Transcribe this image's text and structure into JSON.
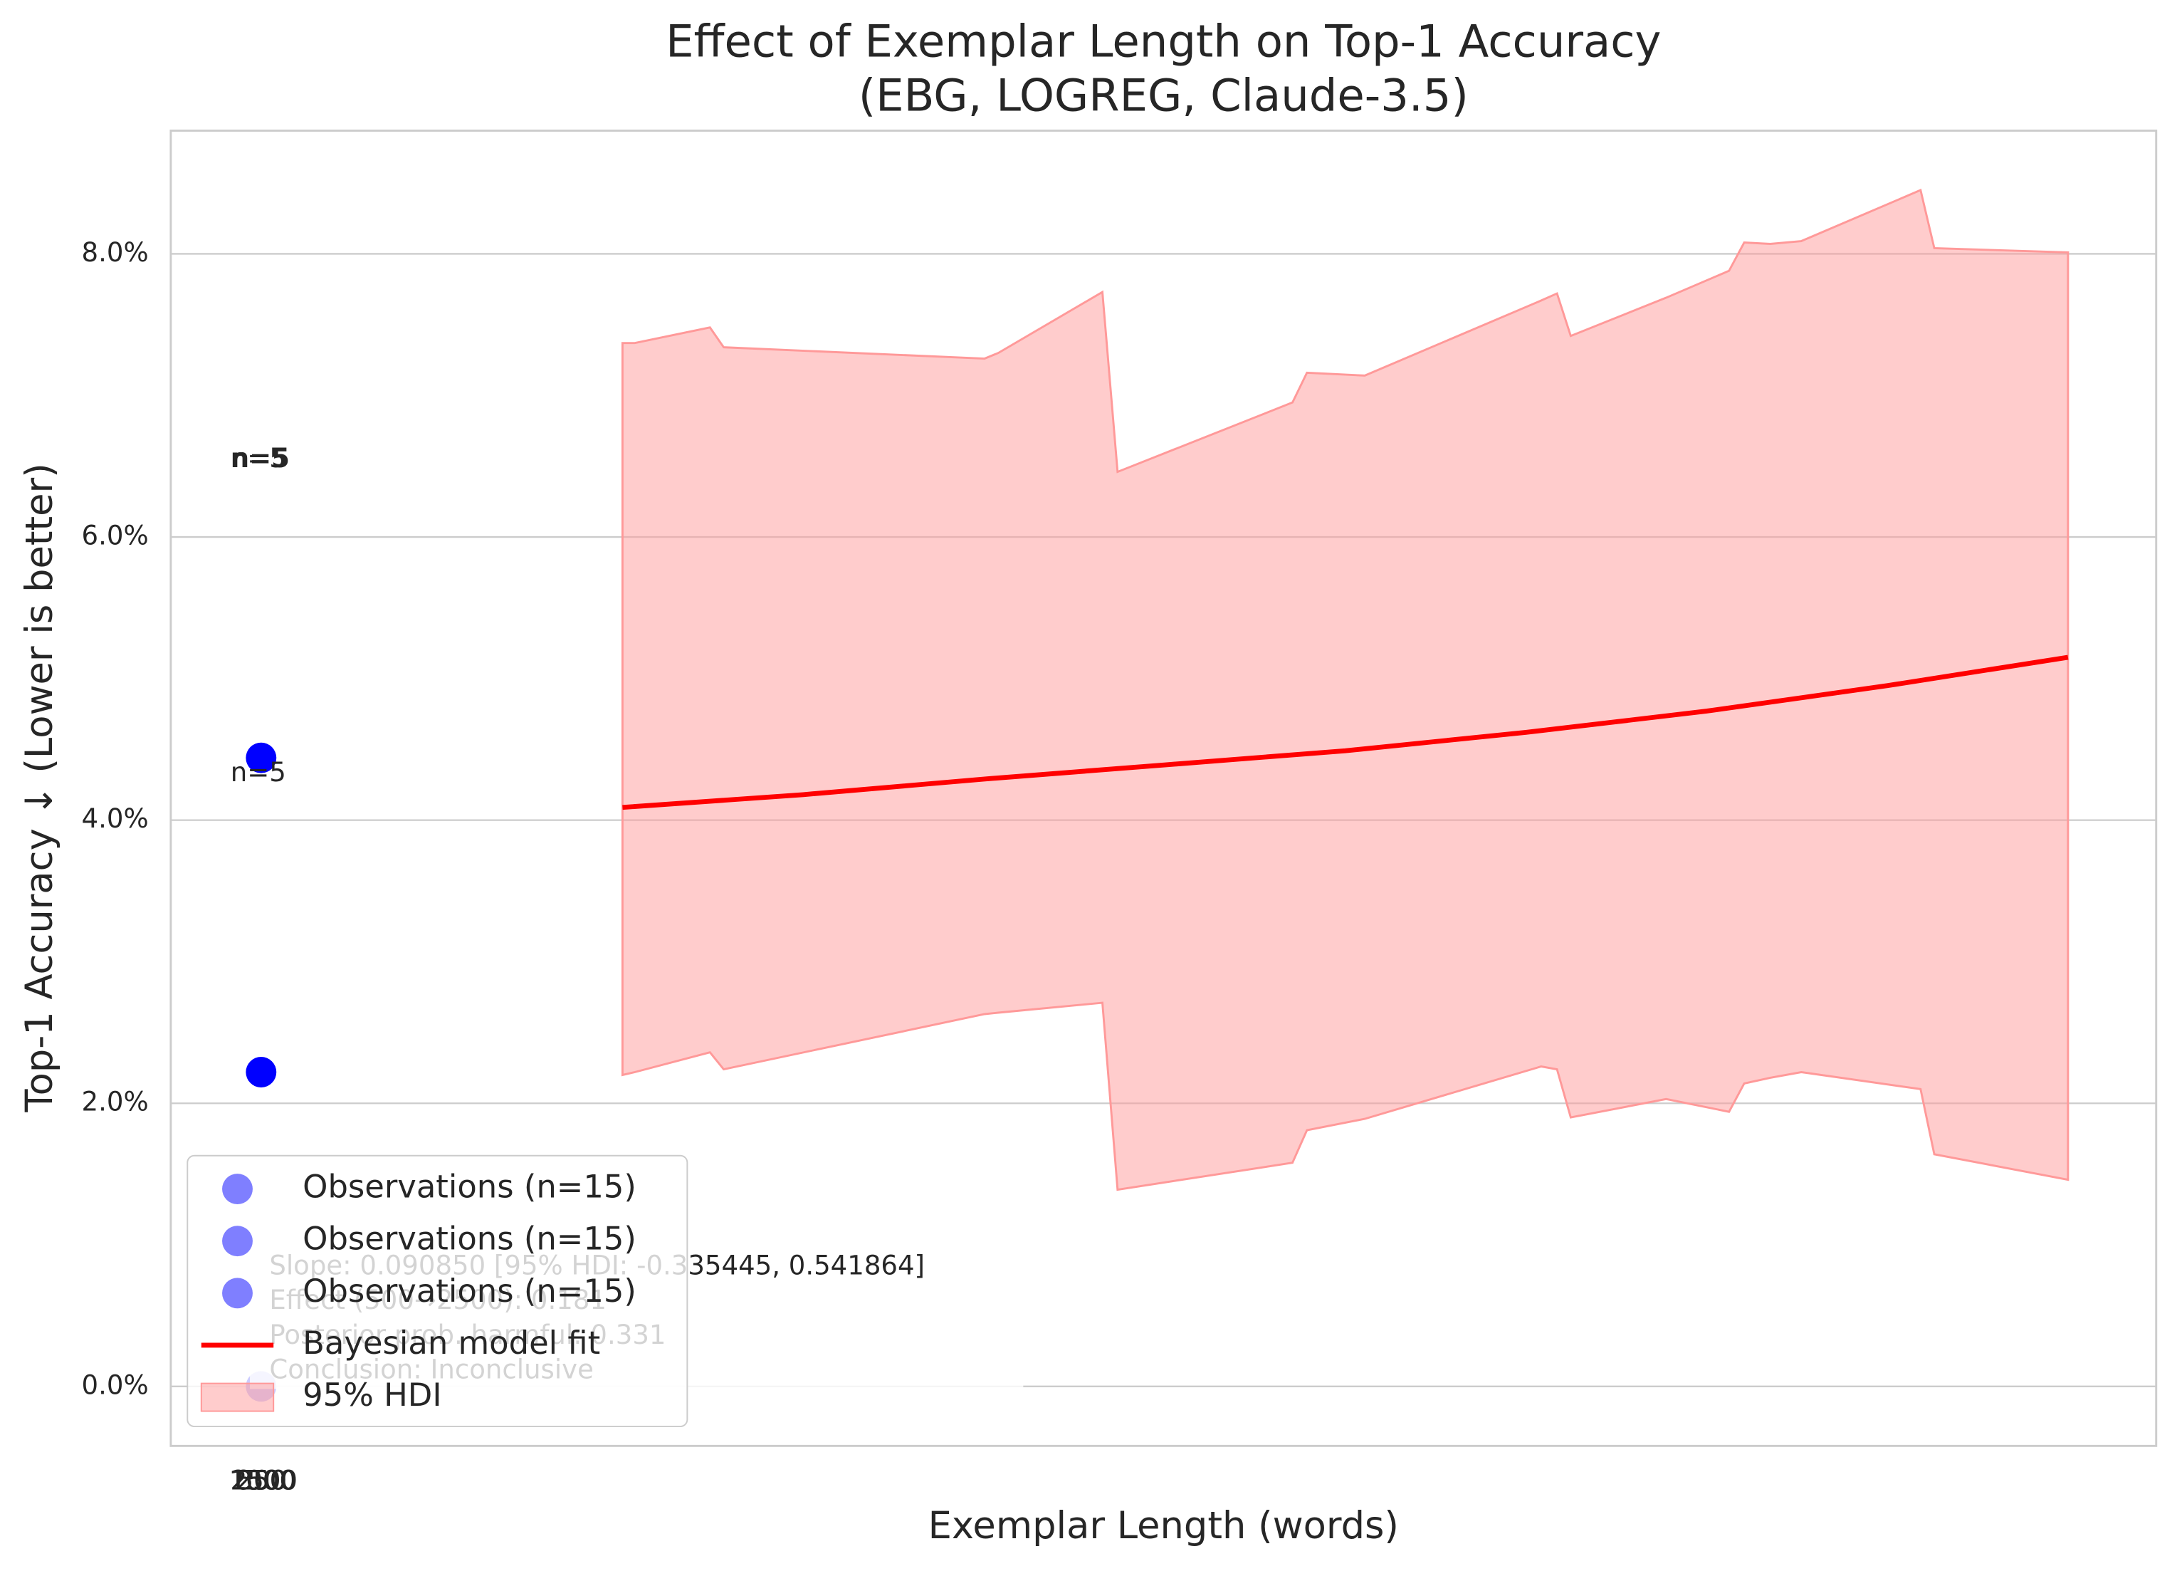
{
  "chart_data": {
    "type": "scatter",
    "title": [
      "Effect of Exemplar Length on Top-1 Accuracy",
      "(EBG, LOGREG, Claude-3.5)"
    ],
    "xlabel": "Exemplar Length (words)",
    "ylabel": "Top-1 Accuracy ↓ (Lower is better)",
    "xlim": [
      -125,
      2622
    ],
    "ylim": [
      -0.42,
      8.87
    ],
    "xticks": [
      {
        "value": 0,
        "label": "250"
      },
      {
        "value": 1,
        "label": "500"
      },
      {
        "value": 2,
        "label": "1000"
      },
      {
        "value": 3,
        "label": "1500"
      },
      {
        "value": 4,
        "label": "2500"
      }
    ],
    "yticks": [
      {
        "value": 0,
        "label": "0.0%"
      },
      {
        "value": 2,
        "label": "2.0%"
      },
      {
        "value": 4,
        "label": "4.0%"
      },
      {
        "value": 6,
        "label": "6.0%"
      },
      {
        "value": 8,
        "label": "8.0%"
      }
    ],
    "grid": true,
    "legend": "lower left",
    "series": [
      {
        "name": "Observations (n=15)",
        "color": "#0000ff",
        "x": [
          0
        ],
        "values": [
          4.44
        ]
      },
      {
        "name": "Observations (n=15)",
        "color": "#0000ff",
        "x": [
          0
        ],
        "values": [
          2.22
        ]
      },
      {
        "name": "Observations (n=15)",
        "color": "#0000ff",
        "x": [
          0
        ],
        "values": [
          0.0
        ]
      }
    ],
    "fit": {
      "name": "Bayesian model fit",
      "color": "#ff0000",
      "x": [
        500,
        750,
        1000,
        1250,
        1500,
        1750,
        2000,
        2250,
        2500
      ],
      "values": [
        4.09,
        4.18,
        4.29,
        4.39,
        4.49,
        4.62,
        4.77,
        4.95,
        5.15
      ]
    },
    "band": {
      "name": "95% HDI",
      "color": "#ff9999",
      "x": [
        500,
        517,
        621,
        640,
        1001,
        1020,
        1164,
        1185,
        1427,
        1447,
        1527,
        1771,
        1793,
        1812,
        1944,
        2031,
        2052,
        2088,
        2131,
        2296,
        2315,
        2500
      ],
      "upper": [
        7.37,
        7.37,
        7.48,
        7.34,
        7.26,
        7.3,
        7.73,
        6.46,
        6.95,
        7.16,
        7.14,
        7.67,
        7.72,
        7.42,
        7.69,
        7.88,
        8.08,
        8.07,
        8.09,
        8.45,
        8.04,
        8.01
      ],
      "lower": [
        2.2,
        2.22,
        2.36,
        2.24,
        2.63,
        2.64,
        2.71,
        1.39,
        1.58,
        1.81,
        1.89,
        2.26,
        2.24,
        1.9,
        2.03,
        1.94,
        2.14,
        2.18,
        2.22,
        2.1,
        1.64,
        1.46
      ]
    },
    "annotations": [
      "n=5",
      "n=5",
      "n=5"
    ],
    "stats_text": [
      "Slope: 0.090850 [95% HDI: -0.335445, 0.541864]",
      "Effect (500→2500): 0.181",
      "Posterior prob. harmful: 0.331",
      "Conclusion: Inconclusive"
    ]
  }
}
